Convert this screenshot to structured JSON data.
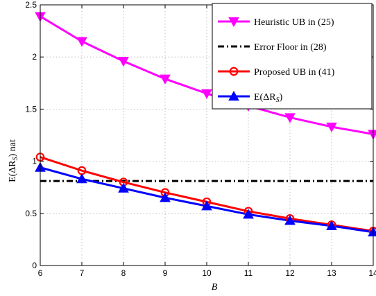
{
  "chart_data": {
    "type": "line",
    "xlabel": "B",
    "ylabel": "E(ΔR_S) nat",
    "x": [
      6,
      7,
      8,
      9,
      10,
      11,
      12,
      13,
      14
    ],
    "xlim": [
      6,
      14
    ],
    "ylim": [
      0,
      2.5
    ],
    "xticks": [
      "6",
      "7",
      "8",
      "9",
      "10",
      "11",
      "12",
      "13",
      "14"
    ],
    "yticks": [
      "0",
      "0.5",
      "1",
      "1.5",
      "2",
      "2.5"
    ],
    "grid": "dotted",
    "legend_position": "top-right",
    "series": [
      {
        "name": "Heuristic UB in (25)",
        "values": [
          2.39,
          2.15,
          1.96,
          1.79,
          1.65,
          1.53,
          1.42,
          1.33,
          1.26
        ],
        "color": "#ff00ff",
        "marker": "triangle-down",
        "line": "solid"
      },
      {
        "name": "Error Floor in (28)",
        "values": [
          0.81,
          0.81,
          0.81,
          0.81,
          0.81,
          0.81,
          0.81,
          0.81,
          0.81
        ],
        "color": "#000000",
        "marker": "none",
        "line": "dashdot"
      },
      {
        "name": "Proposed UB in (41)",
        "values": [
          1.04,
          0.91,
          0.8,
          0.7,
          0.61,
          0.52,
          0.45,
          0.39,
          0.33
        ],
        "color": "#ff0000",
        "marker": "circle",
        "line": "solid"
      },
      {
        "name": "E(ΔR_S)",
        "values": [
          0.94,
          0.83,
          0.74,
          0.65,
          0.57,
          0.49,
          0.43,
          0.38,
          0.32
        ],
        "color": "#0000ff",
        "marker": "triangle-up",
        "line": "solid"
      }
    ]
  }
}
